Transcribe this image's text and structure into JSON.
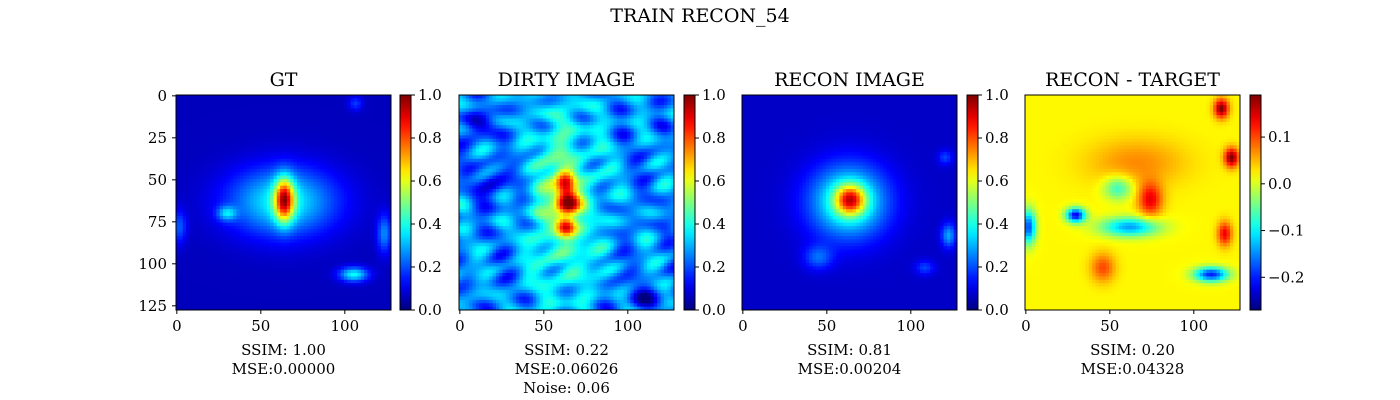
{
  "figure": {
    "title": "TRAIN RECON_54"
  },
  "colors": {
    "cmap": [
      "#00007f",
      "#0000ff",
      "#007fff",
      "#00ffff",
      "#7fff7f",
      "#ffff00",
      "#ff7f00",
      "#ff0000",
      "#7f0000"
    ],
    "background": "#ffffff"
  },
  "chart_data": [
    {
      "type": "heatmap",
      "title": "GT",
      "extent": [
        0,
        127
      ],
      "xticks": [
        "0",
        "50",
        "100"
      ],
      "yticks": [
        "0",
        "25",
        "50",
        "75",
        "100",
        "125"
      ],
      "colorbar": {
        "range": [
          0.0,
          1.0
        ],
        "ticks": [
          "0.0",
          "0.2",
          "0.4",
          "0.6",
          "0.8",
          "1.0"
        ]
      },
      "metrics": [
        "SSIM: 1.00",
        "MSE:0.00000"
      ],
      "background_level": 0.06,
      "blobs": [
        {
          "x": 63,
          "y": 63,
          "sx": 22,
          "sy": 14,
          "amp": 0.32
        },
        {
          "x": 64,
          "y": 62,
          "sx": 4,
          "sy": 9,
          "amp": 0.62
        },
        {
          "x": 30,
          "y": 70,
          "sx": 4,
          "sy": 3,
          "amp": 0.22
        },
        {
          "x": 105,
          "y": 106,
          "sx": 6,
          "sy": 3,
          "amp": 0.32
        },
        {
          "x": 123,
          "y": 82,
          "sx": 3,
          "sy": 8,
          "amp": 0.2
        },
        {
          "x": 2,
          "y": 78,
          "sx": 3,
          "sy": 7,
          "amp": 0.15
        },
        {
          "x": 106,
          "y": 5,
          "sx": 3,
          "sy": 3,
          "amp": 0.12
        }
      ]
    },
    {
      "type": "heatmap",
      "title": "DIRTY IMAGE",
      "extent": [
        0,
        127
      ],
      "xticks": [
        "0",
        "50",
        "100"
      ],
      "yticks": [],
      "colorbar": {
        "range": [
          0.0,
          1.0
        ],
        "ticks": [
          "0.0",
          "0.2",
          "0.4",
          "0.6",
          "0.8",
          "1.0"
        ]
      },
      "metrics": [
        "SSIM: 0.22",
        "MSE:0.06026",
        "Noise: 0.06"
      ],
      "background_level": 0.26,
      "blobs": [
        {
          "x": 62,
          "y": 64,
          "sx": 14,
          "sy": 40,
          "amp": 0.22
        },
        {
          "x": 63,
          "y": 52,
          "sx": 4,
          "sy": 5,
          "amp": 0.45
        },
        {
          "x": 64,
          "y": 64,
          "sx": 5,
          "sy": 5,
          "amp": 0.55
        },
        {
          "x": 63,
          "y": 78,
          "sx": 4,
          "sy": 4,
          "amp": 0.4
        },
        {
          "x": 12,
          "y": 18,
          "sx": 6,
          "sy": 6,
          "amp": -0.18
        },
        {
          "x": 20,
          "y": 52,
          "sx": 6,
          "sy": 8,
          "amp": -0.18
        },
        {
          "x": 110,
          "y": 120,
          "sx": 8,
          "sy": 5,
          "amp": -0.15
        }
      ],
      "ripple": 0.16
    },
    {
      "type": "heatmap",
      "title": "RECON IMAGE",
      "extent": [
        0,
        127
      ],
      "xticks": [
        "0",
        "50",
        "100"
      ],
      "yticks": [],
      "colorbar": {
        "range": [
          0.0,
          1.0
        ],
        "ticks": [
          "0.0",
          "0.2",
          "0.4",
          "0.6",
          "0.8",
          "1.0"
        ]
      },
      "metrics": [
        "SSIM: 0.81",
        "MSE:0.00204"
      ],
      "background_level": 0.07,
      "blobs": [
        {
          "x": 63,
          "y": 63,
          "sx": 16,
          "sy": 15,
          "amp": 0.38
        },
        {
          "x": 64,
          "y": 62,
          "sx": 6,
          "sy": 6,
          "amp": 0.5
        },
        {
          "x": 45,
          "y": 96,
          "sx": 6,
          "sy": 5,
          "amp": 0.15
        },
        {
          "x": 122,
          "y": 83,
          "sx": 3,
          "sy": 5,
          "amp": 0.22
        },
        {
          "x": 120,
          "y": 37,
          "sx": 3,
          "sy": 3,
          "amp": 0.12
        },
        {
          "x": 108,
          "y": 102,
          "sx": 4,
          "sy": 3,
          "amp": 0.12
        }
      ]
    },
    {
      "type": "heatmap",
      "title": "RECON - TARGET",
      "extent": [
        0,
        127
      ],
      "xticks": [
        "0",
        "50",
        "100"
      ],
      "yticks": [],
      "colorbar": {
        "range": [
          -0.27,
          0.19
        ],
        "ticks": [
          "0.1",
          "0.0",
          "−0.1",
          "−0.2"
        ],
        "tick_values": [
          0.1,
          0.0,
          -0.1,
          -0.2
        ]
      },
      "metrics": [
        "SSIM: 0.20",
        "MSE:0.04328"
      ],
      "background_level": 0.02,
      "blobs": [
        {
          "x": 66,
          "y": 40,
          "sx": 20,
          "sy": 10,
          "amp": 0.05
        },
        {
          "x": 74,
          "y": 62,
          "sx": 5,
          "sy": 7,
          "amp": 0.12
        },
        {
          "x": 116,
          "y": 8,
          "sx": 3,
          "sy": 4,
          "amp": 0.17
        },
        {
          "x": 122,
          "y": 37,
          "sx": 3,
          "sy": 4,
          "amp": 0.17
        },
        {
          "x": 118,
          "y": 82,
          "sx": 3,
          "sy": 5,
          "amp": 0.12
        },
        {
          "x": 46,
          "y": 102,
          "sx": 5,
          "sy": 6,
          "amp": 0.08
        },
        {
          "x": 30,
          "y": 71,
          "sx": 4,
          "sy": 3,
          "amp": -0.24
        },
        {
          "x": 62,
          "y": 78,
          "sx": 12,
          "sy": 4,
          "amp": -0.16
        },
        {
          "x": 110,
          "y": 106,
          "sx": 7,
          "sy": 3,
          "amp": -0.22
        },
        {
          "x": 2,
          "y": 78,
          "sx": 3,
          "sy": 7,
          "amp": -0.2
        },
        {
          "x": 55,
          "y": 55,
          "sx": 6,
          "sy": 5,
          "amp": -0.1
        }
      ]
    }
  ]
}
